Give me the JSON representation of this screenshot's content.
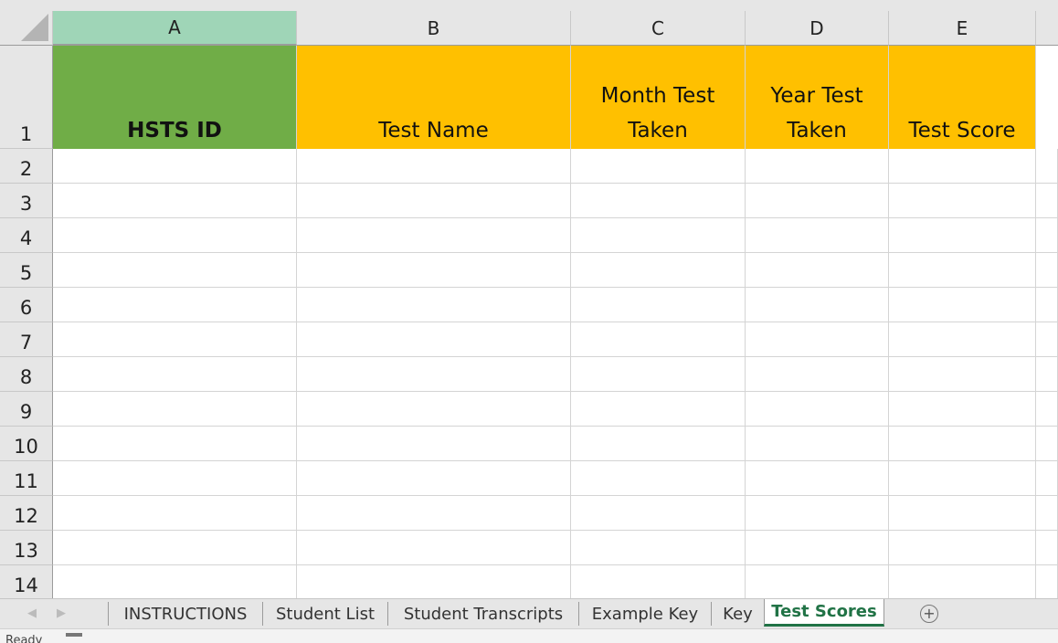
{
  "columns": [
    "A",
    "B",
    "C",
    "D",
    "E"
  ],
  "rows": [
    "1",
    "2",
    "3",
    "4",
    "5",
    "6",
    "7",
    "8",
    "9",
    "10",
    "11",
    "12",
    "13",
    "14"
  ],
  "headers": [
    {
      "text": "HSTS ID",
      "fill": "#70ad47",
      "bold": true
    },
    {
      "text": "Test Name",
      "fill": "#ffc000",
      "bold": false
    },
    {
      "text": "Month Test Taken",
      "fill": "#ffc000",
      "bold": false
    },
    {
      "text": "Year Test Taken",
      "fill": "#ffc000",
      "bold": false
    },
    {
      "text": "Test Score",
      "fill": "#ffc000",
      "bold": false
    }
  ],
  "sheet_tabs": [
    "INSTRUCTIONS",
    "Student List",
    "Student Transcripts",
    "Example Key",
    "Key",
    "Test Scores"
  ],
  "active_tab": "Test Scores",
  "add_sheet_icon": "plus-circle-icon",
  "status": {
    "text": "Ready"
  }
}
